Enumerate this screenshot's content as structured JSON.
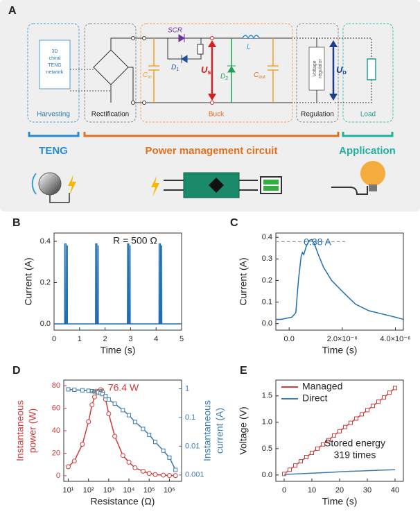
{
  "diagram": {
    "label": "A",
    "teng_network": [
      "3D",
      "chiral",
      "TENG",
      "network"
    ],
    "stages": [
      "Harvesting",
      "Rectification",
      "Buck",
      "Regulation",
      "Load"
    ],
    "components": {
      "scr": "SCR",
      "d1": "D1",
      "l": "L",
      "cin": "Cin",
      "us": "Us",
      "d2": "D2",
      "cout": "Cout",
      "regulator": [
        "Voltage",
        "regulator"
      ],
      "uo": "Uo"
    },
    "sections": [
      "TENG",
      "Power management circuit",
      "Application"
    ]
  },
  "chart_data": [
    {
      "type": "line",
      "label": "B",
      "annotation": "R = 500 Ω",
      "xlabel": "Time (s)",
      "ylabel": "Current (A)",
      "x": [
        0,
        0.415,
        0.42,
        0.425,
        0.465,
        0.47,
        0.475,
        0.515,
        0.52,
        0.525,
        1.625,
        1.63,
        1.635,
        1.675,
        1.68,
        1.685,
        1.725,
        1.73,
        1.735,
        2.875,
        2.88,
        2.885,
        2.925,
        2.93,
        2.935,
        2.975,
        2.98,
        2.985,
        4.115,
        4.12,
        4.125,
        4.165,
        4.17,
        4.175,
        4.215,
        4.22,
        4.225,
        5
      ],
      "series": [
        {
          "color": "#1f6fb0",
          "values": [
            0,
            0,
            0.39,
            0,
            0,
            0.39,
            0,
            0,
            0.38,
            0,
            0,
            0.39,
            0,
            0,
            0.39,
            0,
            0,
            0.38,
            0,
            0,
            0.39,
            0,
            0,
            0.39,
            0,
            0,
            0.38,
            0,
            0,
            0.39,
            0,
            0,
            0.39,
            0,
            0,
            0.38,
            0,
            0
          ]
        }
      ],
      "xlim": [
        0,
        5
      ],
      "ylim": [
        -0.03,
        0.44
      ],
      "xticks": [
        0,
        1,
        2,
        3,
        4,
        5
      ],
      "yticks": [
        {
          "value": 0,
          "label": "0.0"
        },
        {
          "value": 0.2,
          "label": "0.2"
        },
        {
          "value": 0.4,
          "label": "0.4"
        }
      ]
    },
    {
      "type": "line",
      "label": "C",
      "annotation": "0.38 A",
      "reference_line": 0.38,
      "xlabel": "Time (s)",
      "ylabel": "Current (A)",
      "x": [
        -5e-07,
        -3e-07,
        -1e-07,
        1e-07,
        2.5e-07,
        3.5e-07,
        4.5e-07,
        5e-07,
        5.5e-07,
        6.5e-07,
        7.5e-07,
        8.5e-07,
        9.5e-07,
        1.1e-06,
        1.3e-06,
        1.6e-06,
        2e-06,
        2.5e-06,
        3e-06,
        3.5e-06,
        4e-06,
        4.3e-06
      ],
      "series": [
        {
          "color": "#1f6fb0",
          "values": [
            0.02,
            0.02,
            0.025,
            0.03,
            0.05,
            0.2,
            0.31,
            0.33,
            0.32,
            0.36,
            0.385,
            0.39,
            0.37,
            0.32,
            0.26,
            0.2,
            0.15,
            0.09,
            0.06,
            0.045,
            0.03,
            0.02
          ]
        }
      ],
      "xlim": [
        -5e-07,
        4.3e-06
      ],
      "ylim": [
        -0.03,
        0.42
      ],
      "xticks": [
        {
          "value": 0,
          "label": "0.0"
        },
        {
          "value": 2e-06,
          "label": "2.0×10⁻⁶"
        },
        {
          "value": 4e-06,
          "label": "4.0×10⁻⁶"
        }
      ],
      "yticks": [
        {
          "value": 0,
          "label": "0.0"
        },
        {
          "value": 0.1,
          "label": "0.1"
        },
        {
          "value": 0.2,
          "label": "0.2"
        },
        {
          "value": 0.3,
          "label": "0.3"
        },
        {
          "value": 0.4,
          "label": "0.4"
        }
      ]
    },
    {
      "type": "line",
      "label": "D",
      "annotation": "76.4 W",
      "xlabel": "Resistance (Ω)",
      "ylabel": [
        "Instantaneous",
        "power (W)"
      ],
      "y2label": [
        "Instantaneous",
        "current (A)"
      ],
      "xlog": true,
      "y2log": true,
      "x": [
        10,
        20,
        50,
        100,
        150,
        200,
        300,
        400,
        500,
        700,
        1000,
        2000,
        5000,
        10000,
        20000,
        50000,
        100000,
        200000,
        500000,
        1000000,
        2000000
      ],
      "series": [
        {
          "color": "#d03a3a",
          "marker": "circle",
          "values": [
            8,
            13,
            28,
            48,
            63,
            70,
            75,
            76.4,
            74,
            68,
            55,
            35,
            18,
            12,
            7,
            4,
            2,
            1,
            0.5,
            0.2,
            0.1
          ]
        },
        {
          "color": "#3a7ab0",
          "marker": "square",
          "axis": "y2",
          "values": [
            0.95,
            0.92,
            0.88,
            0.85,
            0.82,
            0.8,
            0.75,
            0.7,
            0.65,
            0.55,
            0.42,
            0.3,
            0.18,
            0.12,
            0.07,
            0.04,
            0.025,
            0.014,
            0.007,
            0.004,
            0.0015
          ]
        }
      ],
      "xlim": [
        6,
        4000000
      ],
      "ylim": [
        -5,
        85
      ],
      "y2lim": [
        0.0006,
        2
      ],
      "xticks": [
        {
          "value": 10,
          "label": "10¹"
        },
        {
          "value": 100,
          "label": "10²"
        },
        {
          "value": 1000,
          "label": "10³"
        },
        {
          "value": 10000,
          "label": "10⁴"
        },
        {
          "value": 100000,
          "label": "10⁵"
        },
        {
          "value": 1000000,
          "label": "10⁶"
        }
      ],
      "yticks": [
        0,
        20,
        40,
        60,
        80
      ],
      "y2ticks": [
        0.001,
        0.01,
        0.1,
        1
      ]
    },
    {
      "type": "line",
      "label": "E",
      "annotation": [
        "Stored energy",
        "319 times"
      ],
      "xlabel": "Time (s)",
      "ylabel": "Voltage (V)",
      "legend": "upper left",
      "x": [
        0,
        2,
        4,
        6,
        8,
        10,
        12,
        14,
        16,
        18,
        20,
        22,
        24,
        26,
        28,
        30,
        32,
        34,
        36,
        38,
        40
      ],
      "series": [
        {
          "name": "Managed",
          "color": "#d03a3a",
          "marker": "square",
          "values": [
            0.02,
            0.1,
            0.18,
            0.26,
            0.34,
            0.42,
            0.5,
            0.58,
            0.66,
            0.75,
            0.83,
            0.91,
            0.99,
            1.07,
            1.15,
            1.23,
            1.31,
            1.39,
            1.47,
            1.56,
            1.65
          ]
        },
        {
          "name": "Direct",
          "color": "#3a7ab0",
          "values": [
            0.01,
            0.015,
            0.02,
            0.025,
            0.03,
            0.035,
            0.04,
            0.045,
            0.05,
            0.055,
            0.06,
            0.065,
            0.07,
            0.074,
            0.078,
            0.082,
            0.086,
            0.09,
            0.094,
            0.097,
            0.1
          ]
        }
      ],
      "xlim": [
        -3,
        43
      ],
      "ylim": [
        -0.12,
        1.8
      ],
      "xticks": [
        0,
        10,
        20,
        30,
        40
      ],
      "yticks": [
        {
          "value": 0,
          "label": "0.0"
        },
        {
          "value": 0.5,
          "label": "0.5"
        },
        {
          "value": 1,
          "label": "1.0"
        },
        {
          "value": 1.5,
          "label": "1.5"
        }
      ]
    }
  ]
}
